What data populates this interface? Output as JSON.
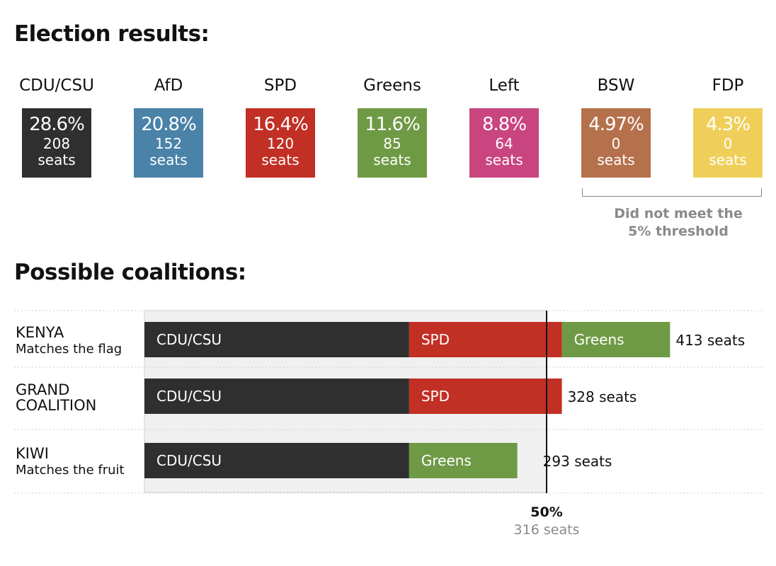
{
  "results_heading": "Election results:",
  "coalitions_heading": "Possible coalitions:",
  "parties": [
    {
      "name": "CDU/CSU",
      "pct": "28.6%",
      "seats": "208",
      "seats_word": "seats",
      "color": "#2f2f2f"
    },
    {
      "name": "AfD",
      "pct": "20.8%",
      "seats": "152",
      "seats_word": "seats",
      "color": "#4a82a8"
    },
    {
      "name": "SPD",
      "pct": "16.4%",
      "seats": "120",
      "seats_word": "seats",
      "color": "#c22f24"
    },
    {
      "name": "Greens",
      "pct": "11.6%",
      "seats": "85",
      "seats_word": "seats",
      "color": "#6f9a45"
    },
    {
      "name": "Left",
      "pct": "8.8%",
      "seats": "64",
      "seats_word": "seats",
      "color": "#c9457f"
    },
    {
      "name": "BSW",
      "pct": "4.97%",
      "seats": "0",
      "seats_word": "seats",
      "color": "#b5714c"
    },
    {
      "name": "FDP",
      "pct": "4.3%",
      "seats": "0",
      "seats_word": "seats",
      "color": "#efcf5a"
    }
  ],
  "threshold_note": [
    "Did not meet the",
    "5% threshold"
  ],
  "chart_data": {
    "type": "bar",
    "orientation": "horizontal",
    "stacked": true,
    "xlim": [
      0,
      632
    ],
    "majority": {
      "value": 316,
      "label_pct": "50%",
      "label_seats": "316 seats"
    },
    "coalitions": [
      {
        "title": [
          "KENYA"
        ],
        "subtitle": "Matches the flag",
        "total_label": "413 seats",
        "segments": [
          {
            "party": "CDU/CSU",
            "value": 208,
            "color": "#2f2f2f"
          },
          {
            "party": "SPD",
            "value": 120,
            "color": "#c22f24"
          },
          {
            "party": "Greens",
            "value": 85,
            "color": "#6f9a45"
          }
        ]
      },
      {
        "title": [
          "GRAND",
          "COALITION"
        ],
        "subtitle": "",
        "total_label": "328 seats",
        "segments": [
          {
            "party": "CDU/CSU",
            "value": 208,
            "color": "#2f2f2f"
          },
          {
            "party": "SPD",
            "value": 120,
            "color": "#c22f24"
          }
        ]
      },
      {
        "title": [
          "KIWI"
        ],
        "subtitle": "Matches the fruit",
        "total_label": "293 seats",
        "segments": [
          {
            "party": "CDU/CSU",
            "value": 208,
            "color": "#2f2f2f"
          },
          {
            "party": "Greens",
            "value": 85,
            "color": "#6f9a45"
          }
        ]
      }
    ]
  }
}
